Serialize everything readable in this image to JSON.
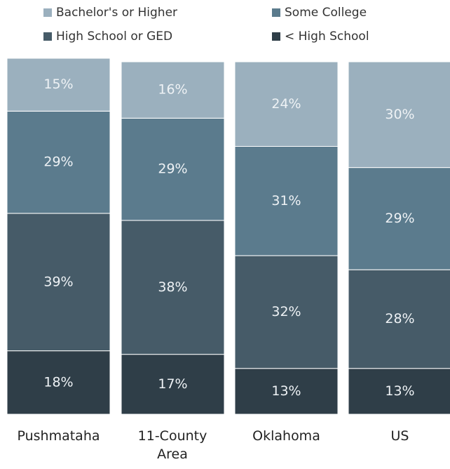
{
  "chart_data": {
    "type": "stacked-bar",
    "categories": [
      "Pushmataha",
      "11-County Area",
      "Oklahoma",
      "US"
    ],
    "ylim": [
      0,
      101
    ],
    "series": [
      {
        "name": "Bachelor's or Higher",
        "color": "#9bb0be",
        "values": [
          15,
          16,
          24,
          30
        ],
        "value_labels": [
          "15%",
          "16%",
          "24%",
          "30%"
        ]
      },
      {
        "name": "Some College",
        "color": "#5b7b8d",
        "values": [
          29,
          29,
          31,
          29
        ],
        "value_labels": [
          "29%",
          "29%",
          "31%",
          "29%"
        ]
      },
      {
        "name": "High School or GED",
        "color": "#465b68",
        "values": [
          39,
          38,
          32,
          28
        ],
        "value_labels": [
          "39%",
          "38%",
          "32%",
          "28%"
        ]
      },
      {
        "name": "< High School",
        "color": "#2f3e48",
        "values": [
          18,
          17,
          13,
          13
        ],
        "value_labels": [
          "18%",
          "17%",
          "13%",
          "13%"
        ]
      }
    ]
  }
}
